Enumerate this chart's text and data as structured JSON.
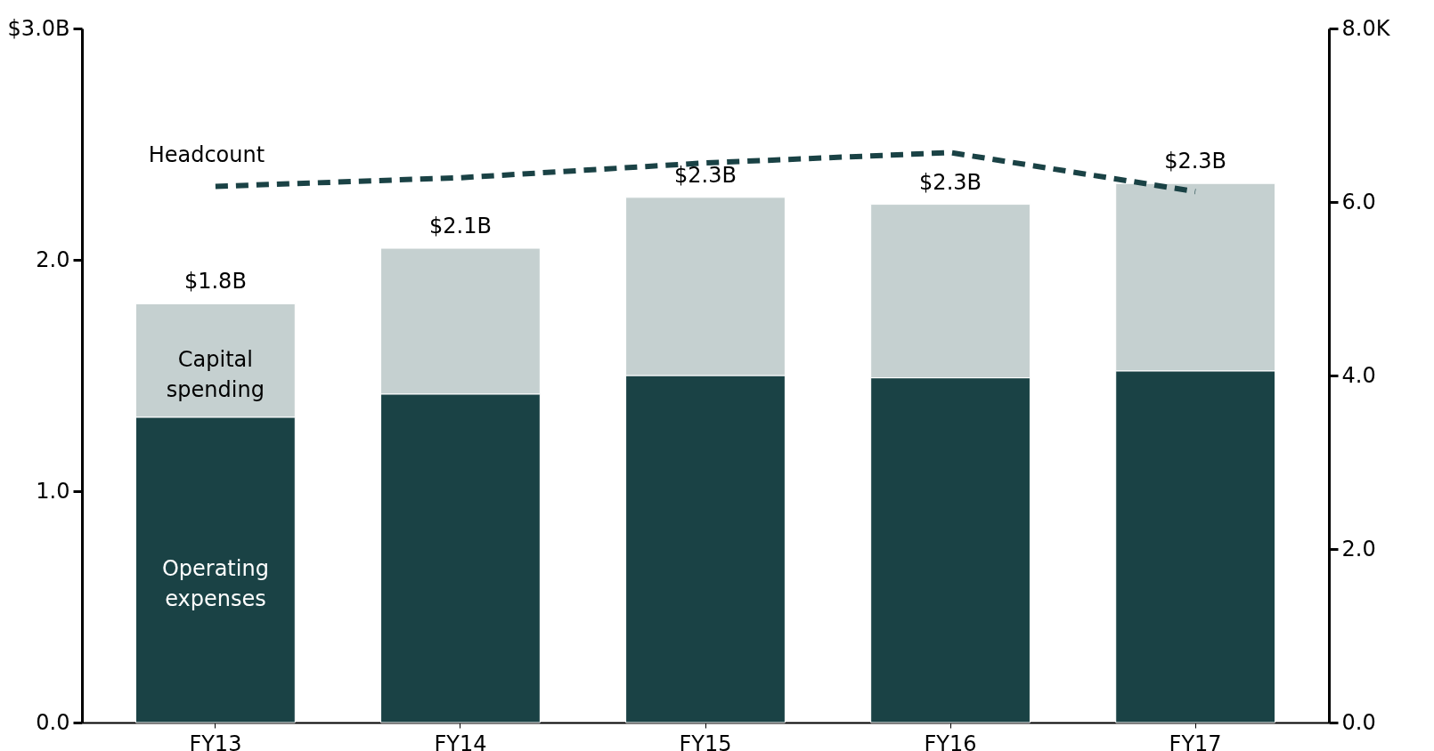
{
  "chart_data": {
    "type": "bar",
    "stacked": true,
    "categories": [
      "FY13",
      "FY14",
      "FY15",
      "FY16",
      "FY17"
    ],
    "series": [
      {
        "name": "Operating expenses",
        "color": "#1a4245",
        "values": [
          1.32,
          1.42,
          1.5,
          1.49,
          1.52
        ]
      },
      {
        "name": "Capital spending",
        "color": "#c5d0d0",
        "values": [
          0.49,
          0.63,
          0.77,
          0.75,
          0.81
        ]
      },
      {
        "name": "Headcount",
        "type": "line",
        "axis": "y2",
        "color": "#1a4245",
        "line_style": "dashed",
        "marker": "none",
        "values": [
          6.18,
          6.28,
          6.45,
          6.57,
          6.12
        ]
      }
    ],
    "totals": [
      "$1.8B",
      "$2.1B",
      "$2.3B",
      "$2.3B",
      "$2.3B"
    ],
    "ylim": [
      0,
      3
    ],
    "yticks": [
      {
        "value": 0,
        "label": "0.0"
      },
      {
        "value": 1,
        "label": "1.0"
      },
      {
        "value": 2,
        "label": "2.0"
      },
      {
        "value": 3,
        "label": "$3.0B"
      }
    ],
    "y2lim": [
      0,
      8
    ],
    "y2ticks": [
      {
        "value": 0,
        "label": "0.0"
      },
      {
        "value": 2,
        "label": "2.0"
      },
      {
        "value": 4,
        "label": "4.0"
      },
      {
        "value": 6,
        "label": "6.0"
      },
      {
        "value": 8,
        "label": "8.0K"
      }
    ],
    "grid": false,
    "legend": false
  }
}
